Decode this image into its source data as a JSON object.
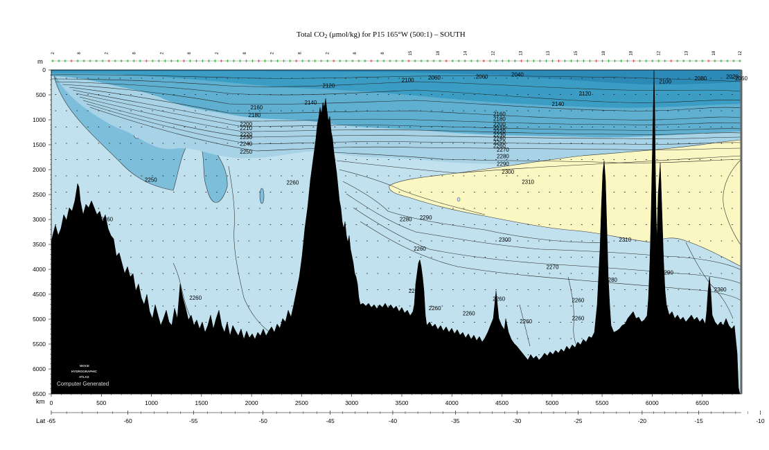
{
  "chart_data": {
    "type": "contour-section",
    "title_main": "Total CO",
    "title_sub": "2",
    "title_rest": " (μmol/kg) for P15 165°W (500:1) – SOUTH",
    "depth_unit": "m",
    "distance_unit": "km",
    "lat_label": "Lat",
    "depth_ticks": [
      "0",
      "500",
      "1000",
      "1500",
      "2000",
      "2500",
      "3000",
      "3500",
      "4000",
      "4500",
      "5000",
      "5500",
      "6000",
      "6500"
    ],
    "distance_ticks": [
      "0",
      "500",
      "1000",
      "1500",
      "2000",
      "2500",
      "3000",
      "3500",
      "4000",
      "4500",
      "5000",
      "5500",
      "6000",
      "6500"
    ],
    "lat_ticks": [
      {
        "km": 0,
        "label": "-65"
      },
      {
        "km": 765,
        "label": "-60"
      },
      {
        "km": 1420,
        "label": "-55"
      },
      {
        "km": 2115,
        "label": "-50"
      },
      {
        "km": 2785,
        "label": "-45"
      },
      {
        "km": 3410,
        "label": "-40"
      },
      {
        "km": 4035,
        "label": "-35"
      },
      {
        "km": 4650,
        "label": "-30"
      },
      {
        "km": 5260,
        "label": "-25"
      },
      {
        "km": 5900,
        "label": "-20"
      },
      {
        "km": 6465,
        "label": "-15"
      },
      {
        "km": 7080,
        "label": "-10"
      }
    ],
    "x_range_km": [
      0,
      6890
    ],
    "y_range_m": [
      0,
      6500
    ],
    "station_labels": [
      "2",
      "8",
      "2",
      "8",
      "2",
      "8",
      "2",
      "8",
      "2",
      "8",
      "2",
      "8",
      "8",
      "15",
      "18",
      "14",
      "12",
      "13",
      "13",
      "15",
      "18",
      "18",
      "12",
      "13",
      "18",
      "12"
    ],
    "contour_labels": [
      {
        "km": 3560,
        "m": 200,
        "label": "2100"
      },
      {
        "km": 3825,
        "m": 150,
        "label": "2060"
      },
      {
        "km": 4300,
        "m": 130,
        "label": "2060"
      },
      {
        "km": 4655,
        "m": 90,
        "label": "2040"
      },
      {
        "km": 6130,
        "m": 230,
        "label": "2100"
      },
      {
        "km": 6485,
        "m": 170,
        "label": "2080"
      },
      {
        "km": 6800,
        "m": 130,
        "label": "2020"
      },
      {
        "km": 6890,
        "m": 170,
        "label": "2060"
      },
      {
        "km": 2770,
        "m": 310,
        "label": "2120"
      },
      {
        "km": 5330,
        "m": 470,
        "label": "2120"
      },
      {
        "km": 5060,
        "m": 680,
        "label": "2140"
      },
      {
        "km": 2590,
        "m": 650,
        "label": "2140"
      },
      {
        "km": 2050,
        "m": 750,
        "label": "2160"
      },
      {
        "km": 2030,
        "m": 900,
        "label": "2180"
      },
      {
        "km": 1945,
        "m": 1080,
        "label": "2200"
      },
      {
        "km": 1945,
        "m": 1170,
        "label": "2210"
      },
      {
        "km": 1945,
        "m": 1290,
        "label": "2220"
      },
      {
        "km": 1945,
        "m": 1350,
        "label": "2230"
      },
      {
        "km": 1945,
        "m": 1480,
        "label": "2240"
      },
      {
        "km": 1945,
        "m": 1640,
        "label": "2250"
      },
      {
        "km": 4475,
        "m": 880,
        "label": "2160"
      },
      {
        "km": 4475,
        "m": 980,
        "label": "2180"
      },
      {
        "km": 4475,
        "m": 1090,
        "label": "2200"
      },
      {
        "km": 4475,
        "m": 1160,
        "label": "2210"
      },
      {
        "km": 4475,
        "m": 1230,
        "label": "2220"
      },
      {
        "km": 4475,
        "m": 1300,
        "label": "2230"
      },
      {
        "km": 4475,
        "m": 1370,
        "label": "2240"
      },
      {
        "km": 4475,
        "m": 1450,
        "label": "2250"
      },
      {
        "km": 4475,
        "m": 1520,
        "label": "2260"
      },
      {
        "km": 4510,
        "m": 1600,
        "label": "2270"
      },
      {
        "km": 4510,
        "m": 1730,
        "label": "2280"
      },
      {
        "km": 4510,
        "m": 1880,
        "label": "2290"
      },
      {
        "km": 4560,
        "m": 2040,
        "label": "2300"
      },
      {
        "km": 4760,
        "m": 2240,
        "label": "2310"
      },
      {
        "km": 995,
        "m": 2200,
        "label": "2250"
      },
      {
        "km": 2410,
        "m": 2260,
        "label": "2260"
      },
      {
        "km": 555,
        "m": 2990,
        "label": "2260"
      },
      {
        "km": 3540,
        "m": 2990,
        "label": "2280"
      },
      {
        "km": 3740,
        "m": 2960,
        "label": "2290"
      },
      {
        "km": 4530,
        "m": 3400,
        "label": "2300"
      },
      {
        "km": 5730,
        "m": 3400,
        "label": "2310"
      },
      {
        "km": 5005,
        "m": 3950,
        "label": "2270"
      },
      {
        "km": 3680,
        "m": 3580,
        "label": "2260"
      },
      {
        "km": 6150,
        "m": 4060,
        "label": "2290"
      },
      {
        "km": 6680,
        "m": 4400,
        "label": "2300"
      },
      {
        "km": 5590,
        "m": 4210,
        "label": "2280"
      },
      {
        "km": 3630,
        "m": 4430,
        "label": "2260"
      },
      {
        "km": 1440,
        "m": 4570,
        "label": "2260"
      },
      {
        "km": 4470,
        "m": 4590,
        "label": "2260"
      },
      {
        "km": 5260,
        "m": 4620,
        "label": "2260"
      },
      {
        "km": 3830,
        "m": 4780,
        "label": "2260"
      },
      {
        "km": 4170,
        "m": 4880,
        "label": "2260"
      },
      {
        "km": 5260,
        "m": 4980,
        "label": "2260"
      },
      {
        "km": 4740,
        "m": 5040,
        "label": "2260"
      },
      {
        "km": 6040,
        "m": 4620,
        "label": "2270"
      }
    ]
  },
  "watermark": {
    "line1": "WOCE",
    "line2": "HYDROGRAPHIC",
    "line3": "ATLAS",
    "line4": "Computer Generated"
  }
}
